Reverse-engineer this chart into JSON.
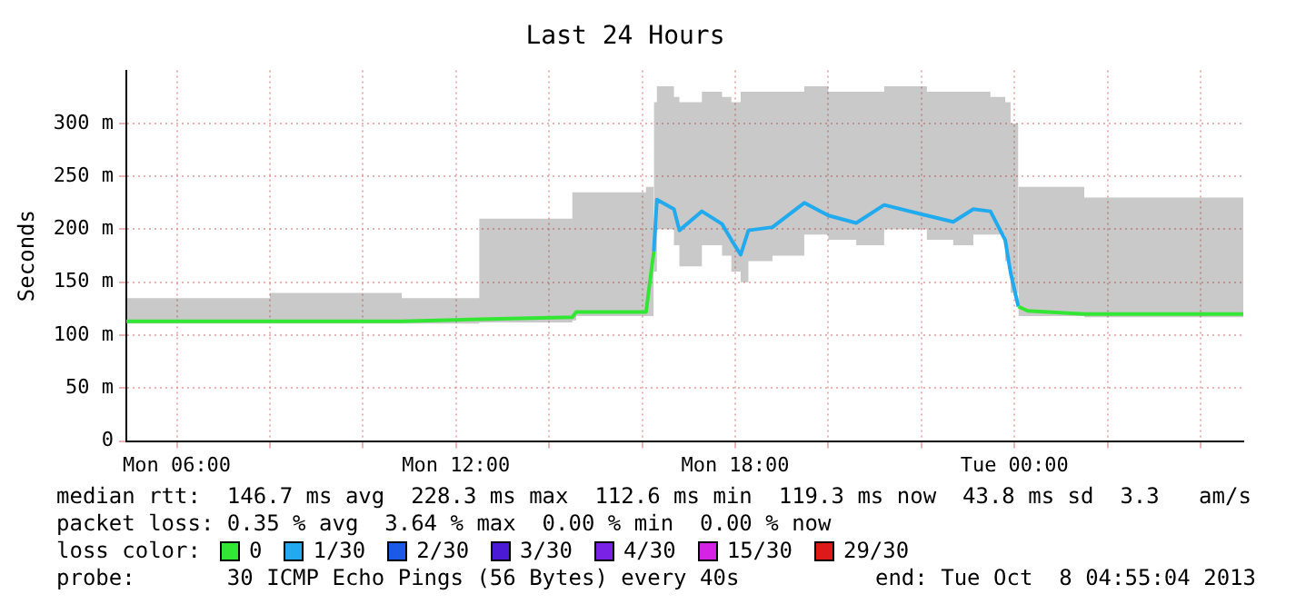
{
  "chart_data": {
    "type": "line",
    "title": "Last 24 Hours",
    "ylabel": "Seconds",
    "xlim": [
      "2013-10-07T04:55",
      "2013-10-08T04:55"
    ],
    "xticks": [
      {
        "value": "2013-10-07T06:00",
        "label": "Mon 06:00"
      },
      {
        "value": "2013-10-07T08:00",
        "label": null
      },
      {
        "value": "2013-10-07T10:00",
        "label": null
      },
      {
        "value": "2013-10-07T12:00",
        "label": "Mon 12:00"
      },
      {
        "value": "2013-10-07T14:00",
        "label": null
      },
      {
        "value": "2013-10-07T16:00",
        "label": null
      },
      {
        "value": "2013-10-07T18:00",
        "label": "Mon 18:00"
      },
      {
        "value": "2013-10-07T20:00",
        "label": null
      },
      {
        "value": "2013-10-07T22:00",
        "label": null
      },
      {
        "value": "2013-10-08T00:00",
        "label": "Tue 00:00"
      },
      {
        "value": "2013-10-08T02:00",
        "label": null
      },
      {
        "value": "2013-10-08T04:00",
        "label": null
      }
    ],
    "ylim": [
      0,
      350
    ],
    "yticks": [
      0,
      {
        "value": 50,
        "label": "50 m"
      },
      {
        "value": 100,
        "label": "100 m"
      },
      {
        "value": 150,
        "label": "150 m"
      },
      {
        "value": 200,
        "label": "200 m"
      },
      {
        "value": 250,
        "label": "250 m"
      },
      {
        "value": 300,
        "label": "300 m"
      }
    ],
    "grid": true,
    "legend": "bottom",
    "marker": "none",
    "line_style": "solid",
    "series": [
      {
        "name": "0",
        "color": "#33e633",
        "x": [
          "2013-10-07T04:55",
          "2013-10-07T08:00",
          "2013-10-07T10:50",
          "2013-10-07T12:30",
          "2013-10-07T14:30",
          "2013-10-07T14:35",
          "2013-10-07T16:05",
          "2013-10-07T16:15",
          "2013-10-07T20:00",
          "2013-10-08T00:05",
          "2013-10-08T00:17",
          "2013-10-08T01:30",
          "2013-10-08T04:55"
        ],
        "values": [
          113,
          113,
          113,
          115,
          117,
          122,
          122,
          179,
          null,
          127,
          123,
          120,
          120
        ],
        "lower": [
          111,
          111,
          111,
          112,
          114,
          118,
          118,
          160,
          null,
          118,
          118,
          117,
          117
        ],
        "upper": [
          135,
          140,
          135,
          210,
          235,
          235,
          240,
          320,
          null,
          240,
          240,
          230,
          220
        ]
      },
      {
        "name": "1/30",
        "color": "#22aaee",
        "x": [
          "2013-10-07T16:15",
          "2013-10-07T16:19",
          "2013-10-07T16:41",
          "2013-10-07T16:48",
          "2013-10-07T17:17",
          "2013-10-07T17:43",
          "2013-10-07T17:55",
          "2013-10-07T18:07",
          "2013-10-07T18:17",
          "2013-10-07T18:48",
          "2013-10-07T19:29",
          "2013-10-07T20:00",
          "2013-10-07T20:36",
          "2013-10-07T21:12",
          "2013-10-07T22:07",
          "2013-10-07T22:41",
          "2013-10-07T23:07",
          "2013-10-07T23:29",
          "2013-10-07T23:48",
          "2013-10-07T23:55",
          "2013-10-08T00:05"
        ],
        "values": [
          179,
          228,
          219,
          199,
          217,
          205,
          190,
          176,
          199,
          202,
          225,
          213,
          206,
          223,
          213,
          207,
          219,
          217,
          190,
          159,
          127
        ],
        "lower": [
          160,
          200,
          185,
          165,
          185,
          175,
          160,
          150,
          170,
          175,
          195,
          190,
          185,
          200,
          190,
          185,
          195,
          195,
          170,
          140,
          118
        ],
        "upper": [
          320,
          335,
          325,
          320,
          330,
          325,
          320,
          330,
          330,
          330,
          335,
          330,
          330,
          335,
          330,
          330,
          330,
          325,
          320,
          300,
          240
        ]
      },
      {
        "name": "2/30",
        "color": "#1a5ae6"
      },
      {
        "name": "3/30",
        "color": "#4a1ad6"
      },
      {
        "name": "4/30",
        "color": "#7a22e6"
      },
      {
        "name": "15/30",
        "color": "#d622e6"
      },
      {
        "name": "29/30",
        "color": "#dd1a1a"
      }
    ],
    "legend_title": "loss color:",
    "annotations": [
      "median rtt:  146.7 ms avg  228.3 ms max  112.6 ms min  119.3 ms now  43.8 ms sd  3.3   am/s",
      "packet loss: 0.35 % avg  3.64 % max  0.00 % min  0.00 % now",
      "probe:       30 ICMP Echo Pings (56 Bytes) every 40s",
      "end: Tue Oct  8 04:55:04 2013"
    ]
  }
}
